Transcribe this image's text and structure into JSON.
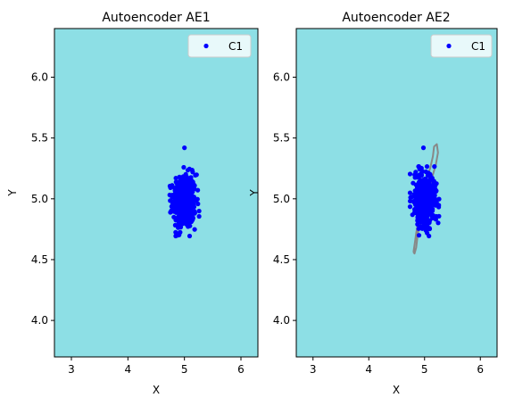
{
  "chart_data": [
    {
      "type": "scatter",
      "title": "Autoencoder AE1",
      "xlabel": "X",
      "ylabel": "Y",
      "xlim": [
        2.7,
        6.3
      ],
      "ylim": [
        3.7,
        6.4
      ],
      "xticks": [
        3,
        4,
        5,
        6
      ],
      "yticks": [
        4.0,
        4.5,
        5.0,
        5.5,
        6.0
      ],
      "xtick_labels": [
        "3",
        "4",
        "5",
        "6"
      ],
      "ytick_labels": [
        "4.0",
        "4.5",
        "5.0",
        "5.5",
        "6.0"
      ],
      "background_color": "#8ddfe5",
      "legend": {
        "position": "top-right",
        "entries": [
          "C1"
        ]
      },
      "series": [
        {
          "name": "C1",
          "color": "#0000ff",
          "center": [
            5.0,
            4.98
          ],
          "spread": [
            0.1,
            0.11
          ],
          "count": 450,
          "outliers": [
            [
              5.0,
              5.42
            ],
            [
              4.88,
              4.7
            ]
          ]
        }
      ],
      "contour": null
    },
    {
      "type": "scatter",
      "title": "Autoencoder AE2",
      "xlabel": "X",
      "ylabel": "Y",
      "xlim": [
        2.7,
        6.3
      ],
      "ylim": [
        3.7,
        6.4
      ],
      "xticks": [
        3,
        4,
        5,
        6
      ],
      "yticks": [
        4.0,
        4.5,
        5.0,
        5.5,
        6.0
      ],
      "xtick_labels": [
        "3",
        "4",
        "5",
        "6"
      ],
      "ytick_labels": [
        "4.0",
        "4.5",
        "5.0",
        "5.5",
        "6.0"
      ],
      "background_color": "#8ddfe5",
      "legend": {
        "position": "top-right",
        "entries": [
          "C1"
        ]
      },
      "series": [
        {
          "name": "C1",
          "color": "#0000ff",
          "center": [
            5.0,
            4.98
          ],
          "spread": [
            0.1,
            0.11
          ],
          "count": 450,
          "outliers": [
            [
              4.98,
              5.42
            ],
            [
              4.9,
              4.7
            ]
          ]
        }
      ],
      "contour": {
        "color": "#888888",
        "points": [
          [
            4.8,
            4.56
          ],
          [
            4.83,
            4.65
          ],
          [
            4.85,
            4.72
          ],
          [
            4.9,
            4.85
          ],
          [
            4.95,
            5.0
          ],
          [
            5.0,
            5.12
          ],
          [
            5.1,
            5.25
          ],
          [
            5.15,
            5.35
          ],
          [
            5.17,
            5.43
          ],
          [
            5.22,
            5.45
          ],
          [
            5.24,
            5.38
          ],
          [
            5.2,
            5.28
          ],
          [
            5.1,
            5.12
          ],
          [
            5.02,
            4.98
          ],
          [
            4.95,
            4.85
          ],
          [
            4.88,
            4.72
          ],
          [
            4.85,
            4.6
          ],
          [
            4.82,
            4.55
          ],
          [
            4.8,
            4.56
          ]
        ]
      }
    }
  ]
}
